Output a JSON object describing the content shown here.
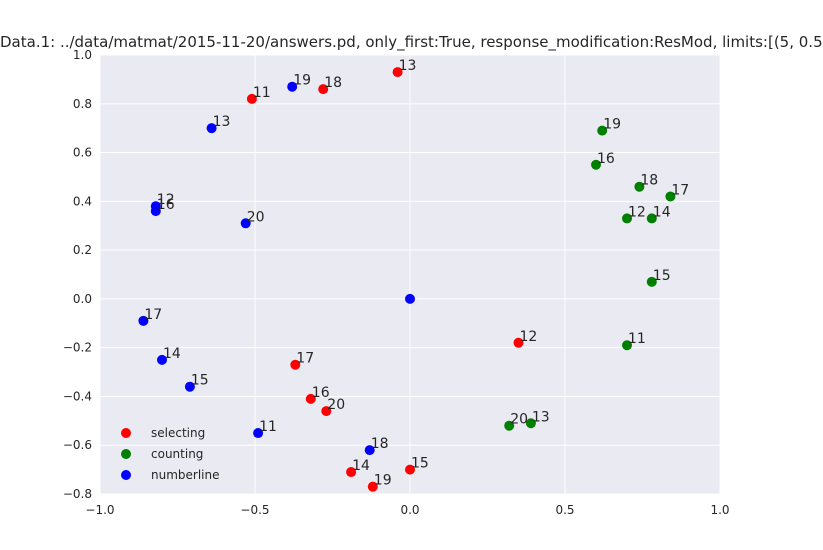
{
  "chart_data": {
    "type": "scatter",
    "title": "Data.1: ../data/matmat/2015-11-20/answers.pd, only_first:True, response_modification:ResMod, limits:[(5, 0.5",
    "xlabel": "",
    "ylabel": "",
    "xlim": [
      -1.0,
      1.0
    ],
    "ylim": [
      -0.8,
      1.0
    ],
    "x_ticks": [
      "−1.0",
      "−0.5",
      "0.0",
      "0.5",
      "1.0"
    ],
    "x_tick_values": [
      -1.0,
      -0.5,
      0.0,
      0.5,
      1.0
    ],
    "y_ticks": [
      "−0.8",
      "−0.6",
      "−0.4",
      "−0.2",
      "0.0",
      "0.2",
      "0.4",
      "0.6",
      "0.8",
      "1.0"
    ],
    "y_tick_values": [
      -0.8,
      -0.6,
      -0.4,
      -0.2,
      0.0,
      0.2,
      0.4,
      0.6,
      0.8,
      1.0
    ],
    "grid": true,
    "legend_position": "lower-left",
    "series": [
      {
        "name": "selecting",
        "color": "#ff0000",
        "points": [
          {
            "x": -0.51,
            "y": 0.82,
            "label": "11"
          },
          {
            "x": -0.28,
            "y": 0.86,
            "label": "18"
          },
          {
            "x": -0.04,
            "y": 0.93,
            "label": "13"
          },
          {
            "x": 0.35,
            "y": -0.18,
            "label": "12"
          },
          {
            "x": -0.37,
            "y": -0.27,
            "label": "17"
          },
          {
            "x": -0.32,
            "y": -0.41,
            "label": "16"
          },
          {
            "x": -0.27,
            "y": -0.46,
            "label": "20"
          },
          {
            "x": -0.19,
            "y": -0.71,
            "label": "14"
          },
          {
            "x": 0.0,
            "y": -0.7,
            "label": "15"
          },
          {
            "x": -0.12,
            "y": -0.77,
            "label": "19"
          }
        ]
      },
      {
        "name": "counting",
        "color": "#008000",
        "points": [
          {
            "x": 0.62,
            "y": 0.69,
            "label": "19"
          },
          {
            "x": 0.6,
            "y": 0.55,
            "label": "16"
          },
          {
            "x": 0.74,
            "y": 0.46,
            "label": "18"
          },
          {
            "x": 0.84,
            "y": 0.42,
            "label": "17"
          },
          {
            "x": 0.7,
            "y": 0.33,
            "label": "12"
          },
          {
            "x": 0.78,
            "y": 0.33,
            "label": "14"
          },
          {
            "x": 0.78,
            "y": 0.07,
            "label": "15"
          },
          {
            "x": 0.7,
            "y": -0.19,
            "label": "11"
          },
          {
            "x": 0.32,
            "y": -0.52,
            "label": "20"
          },
          {
            "x": 0.39,
            "y": -0.51,
            "label": "13"
          }
        ]
      },
      {
        "name": "numberline",
        "color": "#0000ff",
        "points": [
          {
            "x": -0.38,
            "y": 0.87,
            "label": "19"
          },
          {
            "x": -0.64,
            "y": 0.7,
            "label": "13"
          },
          {
            "x": -0.82,
            "y": 0.38,
            "label": "12"
          },
          {
            "x": -0.82,
            "y": 0.36,
            "label": "16"
          },
          {
            "x": -0.53,
            "y": 0.31,
            "label": "20"
          },
          {
            "x": 0.0,
            "y": 0.0,
            "label": ""
          },
          {
            "x": -0.86,
            "y": -0.09,
            "label": "17"
          },
          {
            "x": -0.8,
            "y": -0.25,
            "label": "14"
          },
          {
            "x": -0.71,
            "y": -0.36,
            "label": "15"
          },
          {
            "x": -0.49,
            "y": -0.55,
            "label": "11"
          },
          {
            "x": -0.13,
            "y": -0.62,
            "label": "18"
          }
        ]
      }
    ]
  }
}
